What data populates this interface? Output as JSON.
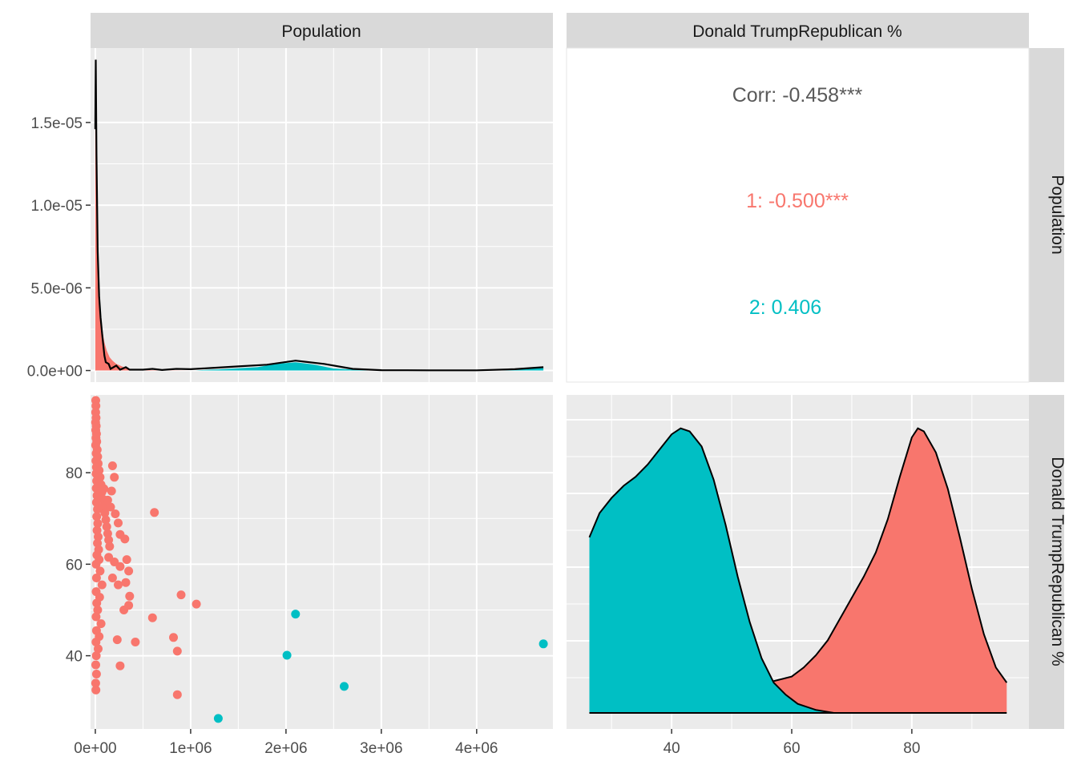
{
  "strips": {
    "col1": "Population",
    "col2": "Donald TrumpRepublican %",
    "row1": "Population",
    "row2": "Donald TrumpRepublican %"
  },
  "colors": {
    "group1": "#F8766D",
    "group2": "#00BFC4",
    "panel_bg": "#EBEBEB",
    "strip_bg": "#D9D9D9",
    "grid": "#FFFFFF",
    "corr_text": "#595959"
  },
  "correlation": {
    "overall": "Corr: -0.458***",
    "group1": "1: -0.500***",
    "group2": "2: 0.406"
  },
  "chart_data": [
    {
      "panel": "population-density",
      "type": "area",
      "xlim": [
        -50000,
        4800000
      ],
      "ylim": [
        -7e-07,
        1.95e-05
      ],
      "x_ticks": [
        0,
        1000000,
        2000000,
        3000000,
        4000000
      ],
      "y_ticks": [
        0,
        5e-06,
        1e-05,
        1.5e-05
      ],
      "y_tick_labels": [
        "0.0e+00",
        "5.0e-06",
        "1.0e-05",
        "1.5e-05"
      ],
      "series": [
        {
          "name": "1",
          "color": "#F8766D",
          "points": [
            [
              0,
              0
            ],
            [
              0,
              1.46e-05
            ],
            [
              5000,
              1.88e-05
            ],
            [
              12000,
              1.3e-05
            ],
            [
              25000,
              7.2e-06
            ],
            [
              40000,
              4.5e-06
            ],
            [
              55000,
              3.2e-06
            ],
            [
              75000,
              2.4e-06
            ],
            [
              95000,
              1.7e-06
            ],
            [
              120000,
              1.2e-06
            ],
            [
              150000,
              8e-07
            ],
            [
              180000,
              6e-07
            ],
            [
              220000,
              4e-07
            ],
            [
              260000,
              3e-07
            ],
            [
              300000,
              2e-07
            ],
            [
              360000,
              1e-07
            ],
            [
              420000,
              5e-08
            ],
            [
              600000,
              2e-08
            ],
            [
              800000,
              1e-08
            ],
            [
              1000000,
              0
            ]
          ]
        },
        {
          "name": "2",
          "color": "#00BFC4",
          "points": [
            [
              1050000,
              0
            ],
            [
              1100000,
              2e-08
            ],
            [
              1300000,
              7e-08
            ],
            [
              1500000,
              1.4e-07
            ],
            [
              1700000,
              2e-07
            ],
            [
              1900000,
              4e-07
            ],
            [
              2100000,
              5e-07
            ],
            [
              2300000,
              3.5e-07
            ],
            [
              2500000,
              1.2e-07
            ],
            [
              2800000,
              3e-08
            ],
            [
              3200000,
              1e-08
            ],
            [
              3800000,
              1e-08
            ],
            [
              4300000,
              4e-08
            ],
            [
              4500000,
              1.4e-07
            ],
            [
              4700000,
              1.5e-07
            ],
            [
              4700000,
              0
            ]
          ]
        }
      ],
      "overall": [
        [
          0,
          1.46e-05
        ],
        [
          5000,
          1.88e-05
        ],
        [
          12000,
          1.3e-05
        ],
        [
          25000,
          7.2e-06
        ],
        [
          40000,
          4.5e-06
        ],
        [
          55000,
          3.2e-06
        ],
        [
          75000,
          2e-06
        ],
        [
          95000,
          9e-07
        ],
        [
          110000,
          5e-07
        ],
        [
          140000,
          4e-07
        ],
        [
          160000,
          1e-07
        ],
        [
          220000,
          3e-07
        ],
        [
          260000,
          5e-08
        ],
        [
          320000,
          2e-07
        ],
        [
          360000,
          5e-08
        ],
        [
          500000,
          5e-08
        ],
        [
          600000,
          1e-07
        ],
        [
          700000,
          3e-08
        ],
        [
          850000,
          1e-07
        ],
        [
          1000000,
          8e-08
        ],
        [
          1200000,
          1.5e-07
        ],
        [
          1500000,
          2.5e-07
        ],
        [
          1800000,
          3.5e-07
        ],
        [
          2100000,
          6e-07
        ],
        [
          2400000,
          4e-07
        ],
        [
          2700000,
          1e-07
        ],
        [
          3000000,
          2e-08
        ],
        [
          3500000,
          1e-08
        ],
        [
          4000000,
          1e-08
        ],
        [
          4400000,
          8e-08
        ],
        [
          4700000,
          2e-07
        ]
      ]
    },
    {
      "panel": "scatter",
      "type": "scatter",
      "xlim": [
        -50000,
        4800000
      ],
      "ylim": [
        24,
        97
      ],
      "x_ticks": [
        0,
        1000000,
        2000000,
        3000000,
        4000000
      ],
      "x_tick_labels": [
        "0e+00",
        "1e+06",
        "2e+06",
        "3e+06",
        "4e+06"
      ],
      "y_ticks": [
        40,
        60,
        80
      ],
      "y_tick_labels": [
        "40",
        "60",
        "80"
      ],
      "series": [
        {
          "name": "1",
          "color": "#F8766D",
          "points": [
            [
              5000,
              95.8
            ],
            [
              6000,
              94.6
            ],
            [
              4000,
              93.2
            ],
            [
              8000,
              92.0
            ],
            [
              3000,
              91.0
            ],
            [
              10000,
              90.2
            ],
            [
              5000,
              89.3
            ],
            [
              12000,
              88.5
            ],
            [
              7000,
              87.6
            ],
            [
              15000,
              86.8
            ],
            [
              4000,
              86.0
            ],
            [
              20000,
              85.0
            ],
            [
              9000,
              84.2
            ],
            [
              25000,
              83.5
            ],
            [
              6000,
              82.6
            ],
            [
              30000,
              82.0
            ],
            [
              11000,
              81.2
            ],
            [
              40000,
              80.5
            ],
            [
              8000,
              79.8
            ],
            [
              50000,
              79.0
            ],
            [
              14000,
              78.2
            ],
            [
              60000,
              77.4
            ],
            [
              10000,
              76.6
            ],
            [
              70000,
              75.8
            ],
            [
              18000,
              75.0
            ],
            [
              80000,
              74.2
            ],
            [
              12000,
              73.5
            ],
            [
              90000,
              72.7
            ],
            [
              22000,
              72.0
            ],
            [
              100000,
              71.2
            ],
            [
              15000,
              70.4
            ],
            [
              110000,
              69.7
            ],
            [
              26000,
              68.9
            ],
            [
              120000,
              68.2
            ],
            [
              18000,
              67.4
            ],
            [
              130000,
              66.7
            ],
            [
              30000,
              66.0
            ],
            [
              140000,
              65.3
            ],
            [
              22000,
              64.6
            ],
            [
              150000,
              63.9
            ],
            [
              35000,
              63.2
            ],
            [
              16000,
              62.0
            ],
            [
              40000,
              61.0
            ],
            [
              8000,
              60.0
            ],
            [
              50000,
              58.5
            ],
            [
              12000,
              57.0
            ],
            [
              70000,
              55.5
            ],
            [
              9000,
              54.0
            ],
            [
              45000,
              52.8
            ],
            [
              15000,
              51.5
            ],
            [
              25000,
              50.0
            ],
            [
              8000,
              48.5
            ],
            [
              60000,
              47.0
            ],
            [
              12000,
              45.5
            ],
            [
              40000,
              44.2
            ],
            [
              7000,
              43.0
            ],
            [
              30000,
              41.5
            ],
            [
              10000,
              40.0
            ],
            [
              5000,
              38.0
            ],
            [
              12000,
              36.0
            ],
            [
              4000,
              34.0
            ],
            [
              6000,
              32.5
            ],
            [
              90000,
              76.5
            ],
            [
              130000,
              74.0
            ],
            [
              160000,
              72.5
            ],
            [
              180000,
              81.5
            ],
            [
              200000,
              79.0
            ],
            [
              170000,
              76.0
            ],
            [
              210000,
              71.0
            ],
            [
              240000,
              69.0
            ],
            [
              260000,
              66.5
            ],
            [
              310000,
              65.5
            ],
            [
              140000,
              61.5
            ],
            [
              200000,
              60.5
            ],
            [
              260000,
              59.5
            ],
            [
              330000,
              61.0
            ],
            [
              350000,
              58.5
            ],
            [
              180000,
              57.0
            ],
            [
              240000,
              55.5
            ],
            [
              320000,
              56.0
            ],
            [
              360000,
              53.0
            ],
            [
              300000,
              50.0
            ],
            [
              350000,
              51.0
            ],
            [
              230000,
              43.5
            ],
            [
              260000,
              37.8
            ],
            [
              420000,
              43.0
            ],
            [
              620000,
              71.3
            ],
            [
              600000,
              48.3
            ],
            [
              820000,
              44.0
            ],
            [
              860000,
              41.0
            ],
            [
              900000,
              53.3
            ],
            [
              1060000,
              51.3
            ],
            [
              860000,
              31.5
            ]
          ]
        },
        {
          "name": "2",
          "color": "#00BFC4",
          "points": [
            [
              1290000,
              26.3
            ],
            [
              2010000,
              40.1
            ],
            [
              2100000,
              49.1
            ],
            [
              2610000,
              33.3
            ],
            [
              4700000,
              42.6
            ]
          ]
        }
      ]
    },
    {
      "panel": "trump-density",
      "type": "area",
      "xlim": [
        22.5,
        99.5
      ],
      "ylim": [
        0,
        1
      ],
      "x_ticks": [
        40,
        60,
        80
      ],
      "x_tick_labels": [
        "40",
        "60",
        "80"
      ],
      "series": [
        {
          "name": "2",
          "color": "#00BFC4",
          "points": [
            [
              26.3,
              0.58
            ],
            [
              28,
              0.66
            ],
            [
              30,
              0.71
            ],
            [
              32,
              0.75
            ],
            [
              34,
              0.78
            ],
            [
              36,
              0.82
            ],
            [
              38,
              0.87
            ],
            [
              40,
              0.92
            ],
            [
              41.5,
              0.94
            ],
            [
              43,
              0.93
            ],
            [
              45,
              0.88
            ],
            [
              47,
              0.77
            ],
            [
              49,
              0.62
            ],
            [
              51,
              0.45
            ],
            [
              53,
              0.3
            ],
            [
              55,
              0.18
            ],
            [
              57,
              0.1
            ],
            [
              59,
              0.06
            ],
            [
              61,
              0.03
            ],
            [
              64,
              0.01
            ],
            [
              67,
              0.0
            ],
            [
              70,
              0.0
            ]
          ]
        },
        {
          "name": "1",
          "color": "#F8766D",
          "points": [
            [
              50,
              0.0
            ],
            [
              52,
              0.02
            ],
            [
              54,
              0.06
            ],
            [
              56,
              0.1
            ],
            [
              58,
              0.11
            ],
            [
              60,
              0.12
            ],
            [
              62,
              0.15
            ],
            [
              64,
              0.19
            ],
            [
              66,
              0.24
            ],
            [
              68,
              0.31
            ],
            [
              70,
              0.38
            ],
            [
              72,
              0.45
            ],
            [
              74,
              0.53
            ],
            [
              76,
              0.64
            ],
            [
              78,
              0.78
            ],
            [
              80,
              0.91
            ],
            [
              81,
              0.94
            ],
            [
              82,
              0.93
            ],
            [
              84,
              0.86
            ],
            [
              86,
              0.74
            ],
            [
              88,
              0.58
            ],
            [
              90,
              0.41
            ],
            [
              92,
              0.26
            ],
            [
              94,
              0.15
            ],
            [
              95.8,
              0.1
            ]
          ]
        }
      ]
    }
  ]
}
